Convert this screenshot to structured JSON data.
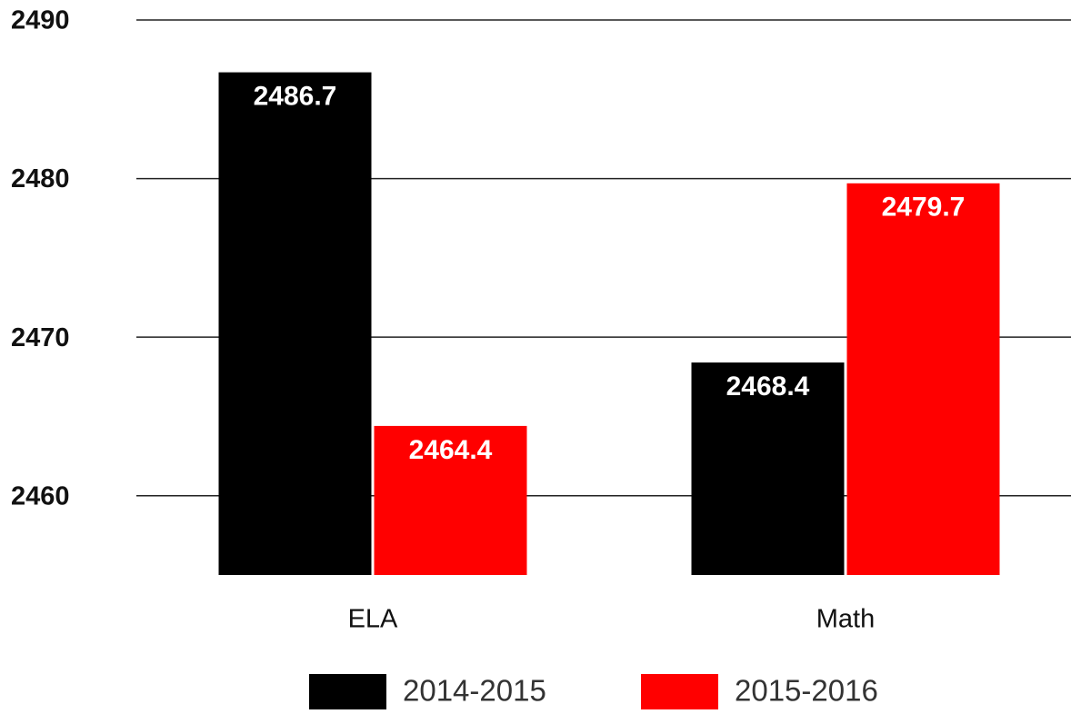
{
  "chart_data": {
    "type": "bar",
    "categories": [
      "ELA",
      "Math"
    ],
    "series": [
      {
        "name": "2014-2015",
        "color": "#000000",
        "values": [
          2486.7,
          2468.4
        ]
      },
      {
        "name": "2015-2016",
        "color": "#ff0000",
        "values": [
          2464.4,
          2479.7
        ]
      }
    ],
    "ylim": [
      2455,
      2490
    ],
    "yticks": [
      2460,
      2470,
      2480,
      2490
    ],
    "grid": true,
    "legend": "bottom"
  }
}
